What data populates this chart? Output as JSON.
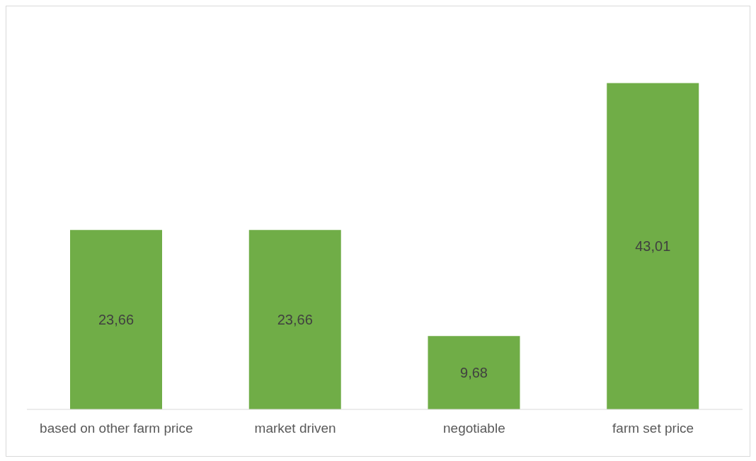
{
  "chart_data": {
    "type": "bar",
    "categories": [
      "based on other farm price",
      "market driven",
      "negotiable",
      "farm set price"
    ],
    "values": [
      23.66,
      23.66,
      9.68,
      43.01
    ],
    "value_labels": [
      "23,66",
      "23,66",
      "9,68",
      "43,01"
    ],
    "color": "#70ad47"
  }
}
